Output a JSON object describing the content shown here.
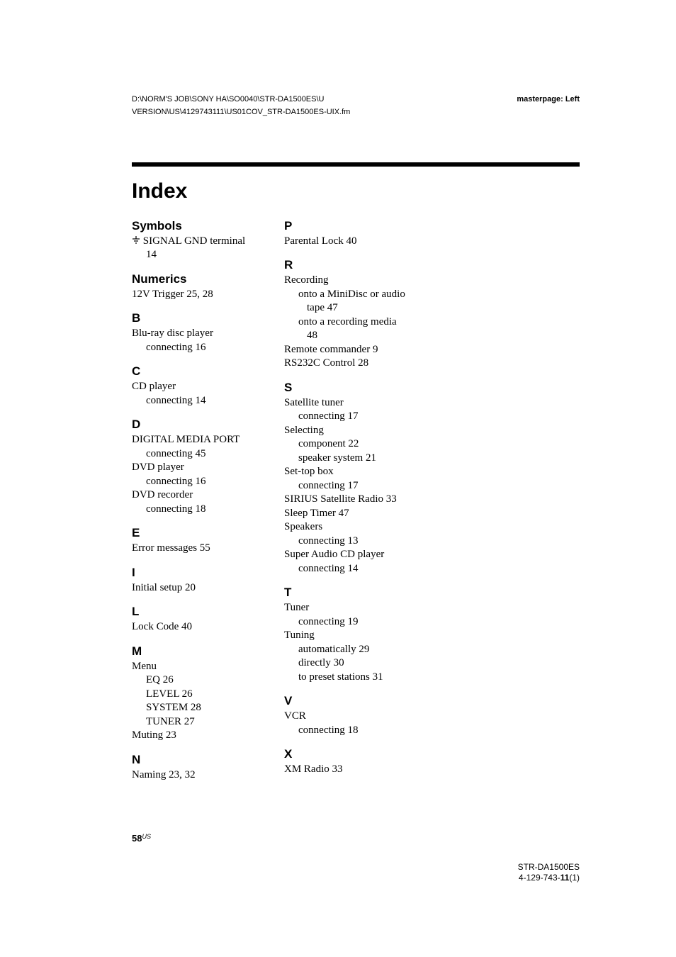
{
  "header": {
    "path_line1": "D:\\NORM'S JOB\\SONY HA\\SO0040\\STR-DA1500ES\\U",
    "path_line2": "VERSION\\US\\4129743111\\US01COV_STR-DA1500ES-UIX.fm",
    "masterpage": "masterpage: Left"
  },
  "title": "Index",
  "left_column": [
    {
      "type": "head",
      "text": "Symbols",
      "first": true
    },
    {
      "type": "entry-icon",
      "text": " SIGNAL GND terminal"
    },
    {
      "type": "sub",
      "text": "14"
    },
    {
      "type": "head",
      "text": "Numerics"
    },
    {
      "type": "entry",
      "text": "12V Trigger  25, 28"
    },
    {
      "type": "head",
      "text": "B"
    },
    {
      "type": "entry",
      "text": "Blu-ray disc player"
    },
    {
      "type": "sub",
      "text": "connecting  16"
    },
    {
      "type": "head",
      "text": "C"
    },
    {
      "type": "entry",
      "text": "CD player"
    },
    {
      "type": "sub",
      "text": "connecting  14"
    },
    {
      "type": "head",
      "text": "D"
    },
    {
      "type": "entry",
      "text": "DIGITAL MEDIA PORT"
    },
    {
      "type": "sub",
      "text": "connecting  45"
    },
    {
      "type": "entry",
      "text": "DVD player"
    },
    {
      "type": "sub",
      "text": "connecting  16"
    },
    {
      "type": "entry",
      "text": "DVD recorder"
    },
    {
      "type": "sub",
      "text": "connecting  18"
    },
    {
      "type": "head",
      "text": "E"
    },
    {
      "type": "entry",
      "text": "Error messages  55"
    },
    {
      "type": "head",
      "text": "I"
    },
    {
      "type": "entry",
      "text": "Initial setup  20"
    },
    {
      "type": "head",
      "text": "L"
    },
    {
      "type": "entry",
      "text": "Lock Code  40"
    },
    {
      "type": "head",
      "text": "M"
    },
    {
      "type": "entry",
      "text": "Menu"
    },
    {
      "type": "sub",
      "text": "EQ  26"
    },
    {
      "type": "sub",
      "text": "LEVEL  26"
    },
    {
      "type": "sub",
      "text": "SYSTEM  28"
    },
    {
      "type": "sub",
      "text": "TUNER  27"
    },
    {
      "type": "entry",
      "text": "Muting  23"
    },
    {
      "type": "head",
      "text": "N"
    },
    {
      "type": "entry",
      "text": "Naming  23, 32"
    }
  ],
  "right_column": [
    {
      "type": "head",
      "text": "P",
      "first": true
    },
    {
      "type": "entry",
      "text": "Parental Lock  40"
    },
    {
      "type": "head",
      "text": "R"
    },
    {
      "type": "entry",
      "text": "Recording"
    },
    {
      "type": "sub",
      "text": "onto a MiniDisc or audio"
    },
    {
      "type": "sub2",
      "text": "tape  47"
    },
    {
      "type": "sub",
      "text": "onto a recording media"
    },
    {
      "type": "sub2",
      "text": "48"
    },
    {
      "type": "entry",
      "text": "Remote commander  9"
    },
    {
      "type": "entry",
      "text": "RS232C Control  28"
    },
    {
      "type": "head",
      "text": "S"
    },
    {
      "type": "entry",
      "text": "Satellite tuner"
    },
    {
      "type": "sub",
      "text": "connecting  17"
    },
    {
      "type": "entry",
      "text": "Selecting"
    },
    {
      "type": "sub",
      "text": "component  22"
    },
    {
      "type": "sub",
      "text": "speaker system  21"
    },
    {
      "type": "entry",
      "text": "Set-top box"
    },
    {
      "type": "sub",
      "text": "connecting  17"
    },
    {
      "type": "entry",
      "text": "SIRIUS Satellite Radio  33"
    },
    {
      "type": "entry",
      "text": "Sleep Timer  47"
    },
    {
      "type": "entry",
      "text": "Speakers"
    },
    {
      "type": "sub",
      "text": "connecting  13"
    },
    {
      "type": "entry",
      "text": "Super Audio CD player"
    },
    {
      "type": "sub",
      "text": "connecting  14"
    },
    {
      "type": "head",
      "text": "T"
    },
    {
      "type": "entry",
      "text": "Tuner"
    },
    {
      "type": "sub",
      "text": "connecting  19"
    },
    {
      "type": "entry",
      "text": "Tuning"
    },
    {
      "type": "sub",
      "text": "automatically  29"
    },
    {
      "type": "sub",
      "text": "directly  30"
    },
    {
      "type": "sub",
      "text": "to preset stations  31"
    },
    {
      "type": "head",
      "text": "V"
    },
    {
      "type": "entry",
      "text": "VCR"
    },
    {
      "type": "sub",
      "text": "connecting  18"
    },
    {
      "type": "head",
      "text": "X"
    },
    {
      "type": "entry",
      "text": "XM Radio  33"
    }
  ],
  "page_number": "58",
  "page_region": "US",
  "footer": {
    "model": "STR-DA1500ES",
    "doc_prefix": "4-129-743-",
    "doc_bold": "11",
    "doc_suffix": "(1)"
  }
}
